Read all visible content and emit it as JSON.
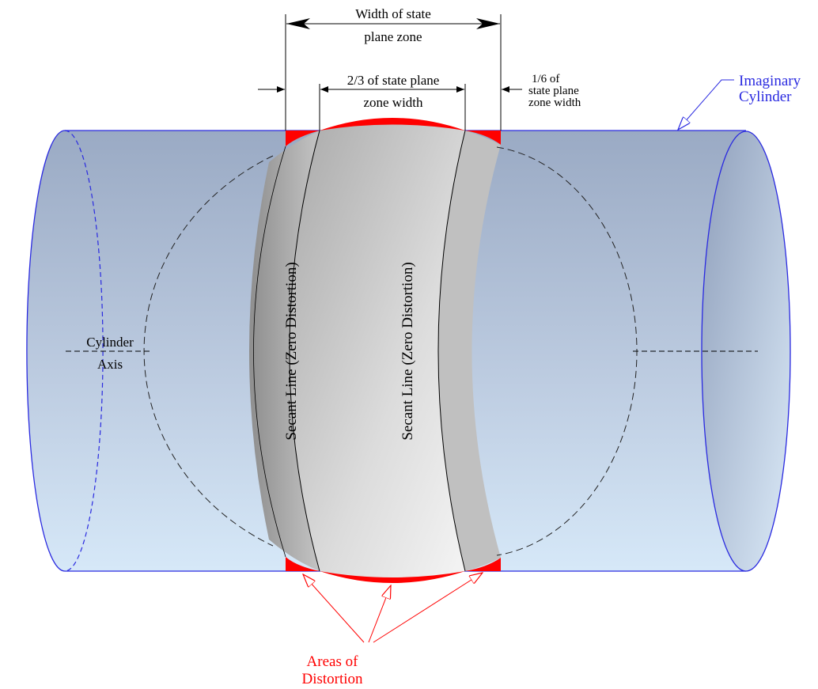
{
  "labels": {
    "width_zone_line1": "Width of state",
    "width_zone_line2": "plane zone",
    "two_thirds_line1": "2/3 of  state plane",
    "two_thirds_line2": "zone width",
    "one_sixth_line1": "1/6 of",
    "one_sixth_line2": "state plane",
    "one_sixth_line3": "zone width",
    "imaginary_line1": "Imaginary",
    "imaginary_line2": "Cylinder",
    "axis_line1": "Cylinder",
    "axis_line2": "Axis",
    "secant_left": "Secant Line (Zero Distortion)",
    "secant_right": "Secant Line (Zero Distortion)",
    "distortion_line1": "Areas of",
    "distortion_line2": "Distortion"
  },
  "colors": {
    "cylinder_outline": "#2a2ae0",
    "distortion": "#ff0000",
    "label_blue": "#2a2ae0",
    "label_red": "#ff0000",
    "ink": "#000000"
  }
}
